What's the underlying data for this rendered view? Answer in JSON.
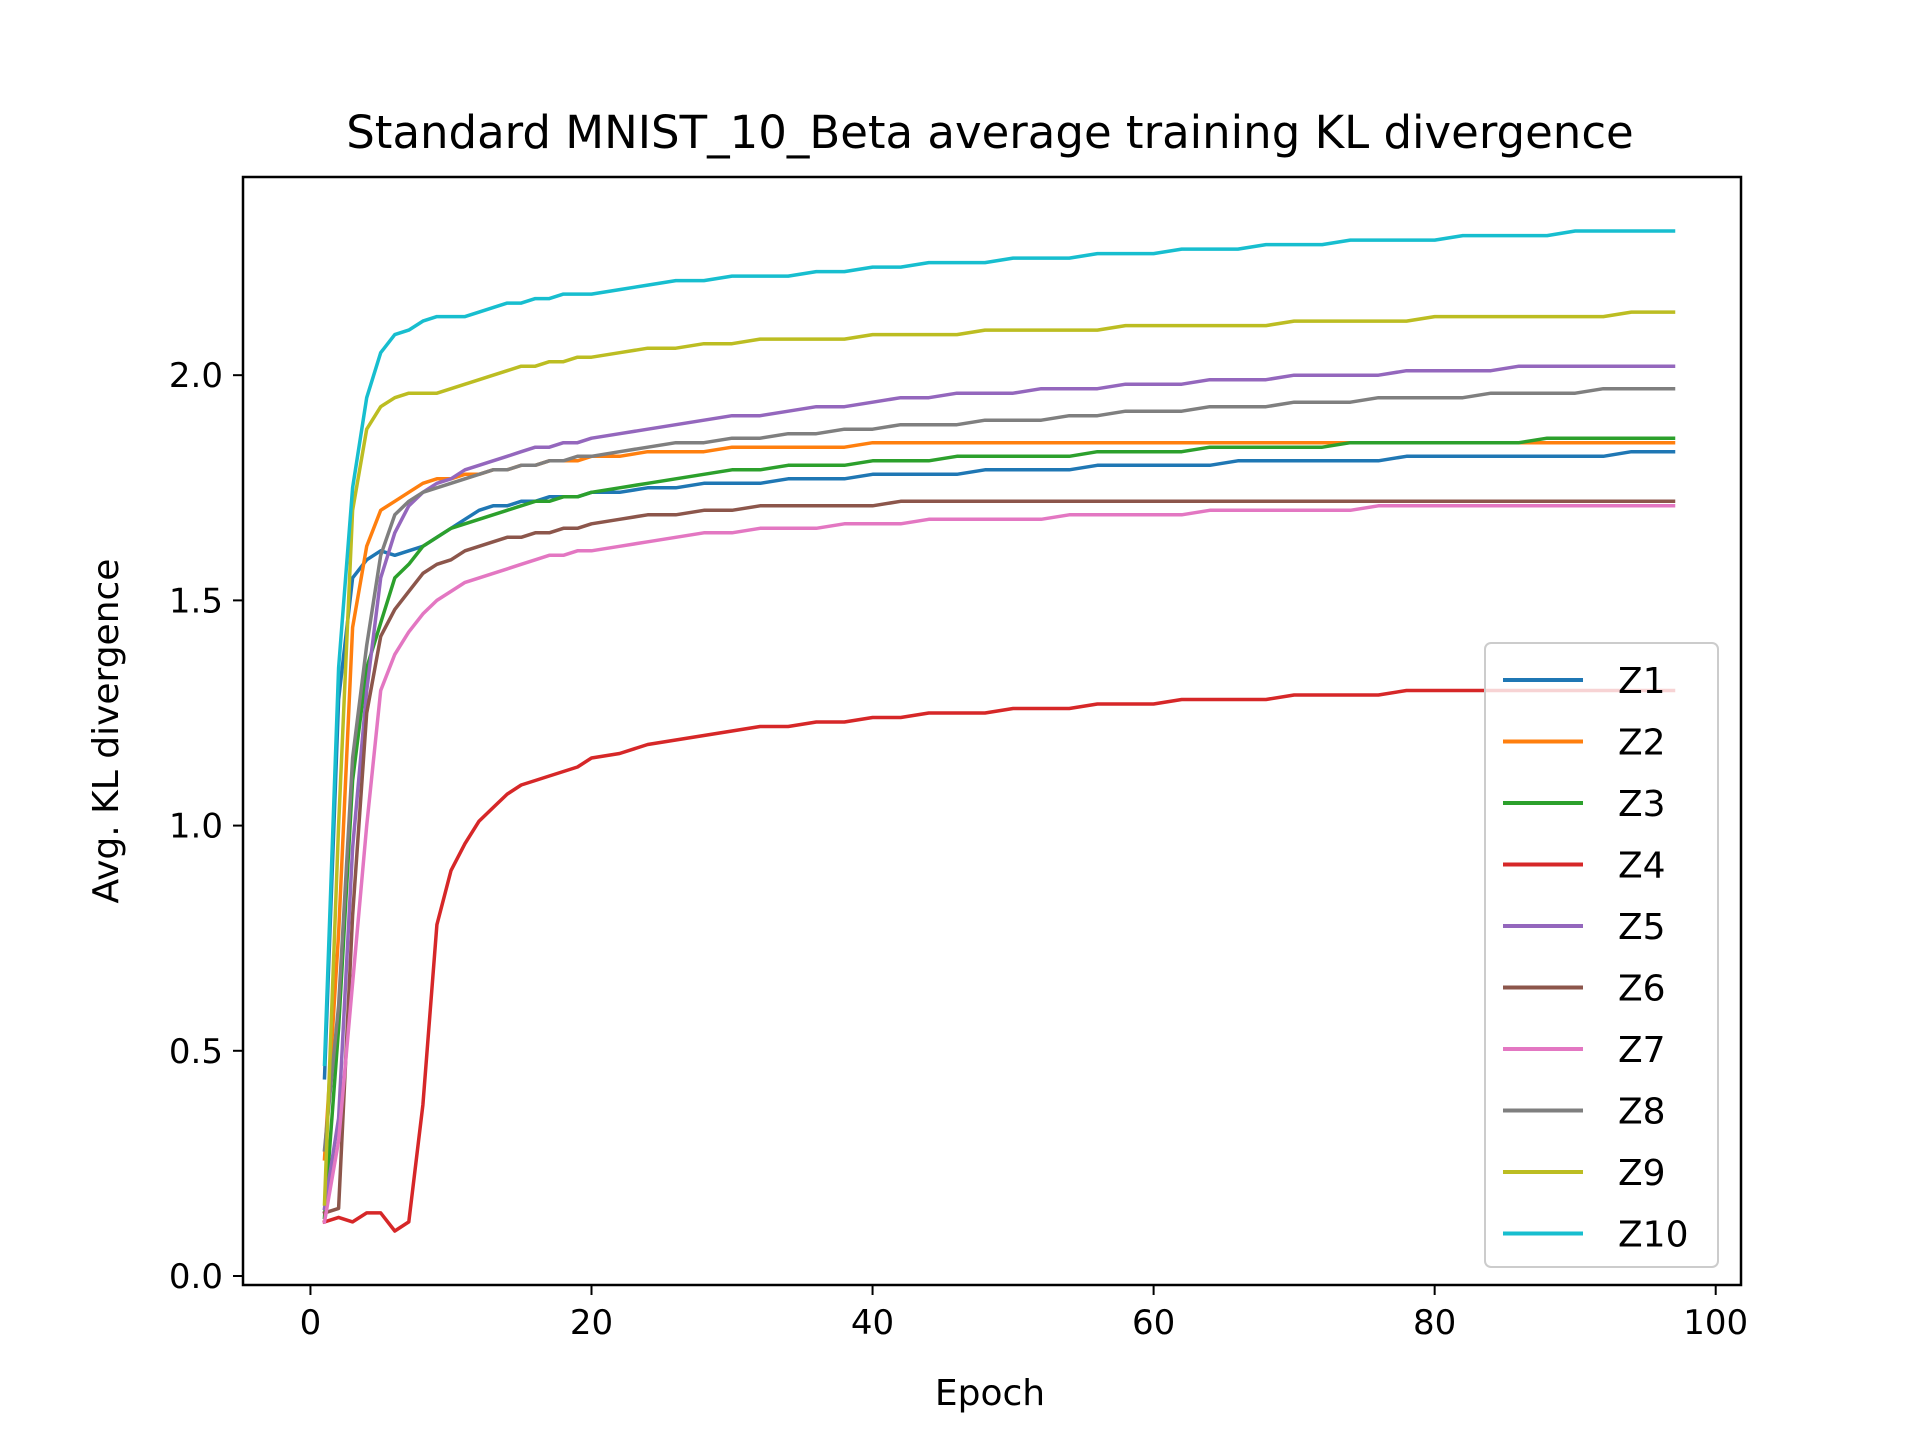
{
  "chart_data": {
    "type": "line",
    "title": "Standard MNIST_10_Beta average training KL divergence",
    "xlabel": "Epoch",
    "ylabel": "Avg. KL divergence",
    "xlim": [
      -4.8,
      101.8
    ],
    "ylim": [
      -0.02,
      2.44
    ],
    "xticks": [
      0,
      20,
      40,
      60,
      80,
      100
    ],
    "xtick_labels": [
      "0",
      "20",
      "40",
      "60",
      "80",
      "100"
    ],
    "yticks": [
      0.0,
      0.5,
      1.0,
      1.5,
      2.0
    ],
    "ytick_labels": [
      "0.0",
      "0.5",
      "1.0",
      "1.5",
      "2.0"
    ],
    "grid": false,
    "legend_position": "lower-right",
    "x": [
      1,
      2,
      3,
      4,
      5,
      6,
      7,
      8,
      9,
      10,
      11,
      12,
      13,
      14,
      15,
      16,
      17,
      18,
      19,
      20,
      22,
      24,
      26,
      28,
      30,
      32,
      34,
      36,
      38,
      40,
      42,
      44,
      46,
      48,
      50,
      52,
      54,
      56,
      58,
      60,
      62,
      64,
      66,
      68,
      70,
      72,
      74,
      76,
      78,
      80,
      82,
      84,
      86,
      88,
      90,
      92,
      94,
      96,
      97
    ],
    "series": [
      {
        "name": "Z1",
        "color": "#1f77b4",
        "values": [
          0.44,
          1.28,
          1.55,
          1.59,
          1.61,
          1.6,
          1.61,
          1.62,
          1.64,
          1.66,
          1.68,
          1.7,
          1.71,
          1.71,
          1.72,
          1.72,
          1.73,
          1.73,
          1.73,
          1.74,
          1.74,
          1.75,
          1.75,
          1.76,
          1.76,
          1.76,
          1.77,
          1.77,
          1.77,
          1.78,
          1.78,
          1.78,
          1.78,
          1.79,
          1.79,
          1.79,
          1.79,
          1.8,
          1.8,
          1.8,
          1.8,
          1.8,
          1.81,
          1.81,
          1.81,
          1.81,
          1.81,
          1.81,
          1.82,
          1.82,
          1.82,
          1.82,
          1.82,
          1.82,
          1.82,
          1.82,
          1.83,
          1.83,
          1.83
        ]
      },
      {
        "name": "Z2",
        "color": "#ff7f0e",
        "values": [
          0.26,
          0.76,
          1.44,
          1.62,
          1.7,
          1.72,
          1.74,
          1.76,
          1.77,
          1.77,
          1.78,
          1.78,
          1.79,
          1.79,
          1.8,
          1.8,
          1.81,
          1.81,
          1.81,
          1.82,
          1.82,
          1.83,
          1.83,
          1.83,
          1.84,
          1.84,
          1.84,
          1.84,
          1.84,
          1.85,
          1.85,
          1.85,
          1.85,
          1.85,
          1.85,
          1.85,
          1.85,
          1.85,
          1.85,
          1.85,
          1.85,
          1.85,
          1.85,
          1.85,
          1.85,
          1.85,
          1.85,
          1.85,
          1.85,
          1.85,
          1.85,
          1.85,
          1.85,
          1.85,
          1.85,
          1.85,
          1.85,
          1.85,
          1.85
        ]
      },
      {
        "name": "Z3",
        "color": "#2ca02c",
        "values": [
          0.13,
          0.55,
          1.1,
          1.35,
          1.45,
          1.55,
          1.58,
          1.62,
          1.64,
          1.66,
          1.67,
          1.68,
          1.69,
          1.7,
          1.71,
          1.72,
          1.72,
          1.73,
          1.73,
          1.74,
          1.75,
          1.76,
          1.77,
          1.78,
          1.79,
          1.79,
          1.8,
          1.8,
          1.8,
          1.81,
          1.81,
          1.81,
          1.82,
          1.82,
          1.82,
          1.82,
          1.82,
          1.83,
          1.83,
          1.83,
          1.83,
          1.84,
          1.84,
          1.84,
          1.84,
          1.84,
          1.85,
          1.85,
          1.85,
          1.85,
          1.85,
          1.85,
          1.85,
          1.86,
          1.86,
          1.86,
          1.86,
          1.86,
          1.86
        ]
      },
      {
        "name": "Z4",
        "color": "#d62728",
        "values": [
          0.12,
          0.13,
          0.12,
          0.14,
          0.14,
          0.1,
          0.12,
          0.38,
          0.78,
          0.9,
          0.96,
          1.01,
          1.04,
          1.07,
          1.09,
          1.1,
          1.11,
          1.12,
          1.13,
          1.15,
          1.16,
          1.18,
          1.19,
          1.2,
          1.21,
          1.22,
          1.22,
          1.23,
          1.23,
          1.24,
          1.24,
          1.25,
          1.25,
          1.25,
          1.26,
          1.26,
          1.26,
          1.27,
          1.27,
          1.27,
          1.28,
          1.28,
          1.28,
          1.28,
          1.29,
          1.29,
          1.29,
          1.29,
          1.3,
          1.3,
          1.3,
          1.3,
          1.3,
          1.3,
          1.3,
          1.3,
          1.3,
          1.3,
          1.3
        ]
      },
      {
        "name": "Z5",
        "color": "#9467bd",
        "values": [
          0.15,
          0.35,
          0.95,
          1.3,
          1.55,
          1.65,
          1.71,
          1.74,
          1.76,
          1.77,
          1.79,
          1.8,
          1.81,
          1.82,
          1.83,
          1.84,
          1.84,
          1.85,
          1.85,
          1.86,
          1.87,
          1.88,
          1.89,
          1.9,
          1.91,
          1.91,
          1.92,
          1.93,
          1.93,
          1.94,
          1.95,
          1.95,
          1.96,
          1.96,
          1.96,
          1.97,
          1.97,
          1.97,
          1.98,
          1.98,
          1.98,
          1.99,
          1.99,
          1.99,
          2.0,
          2.0,
          2.0,
          2.0,
          2.01,
          2.01,
          2.01,
          2.01,
          2.02,
          2.02,
          2.02,
          2.02,
          2.02,
          2.02,
          2.02
        ]
      },
      {
        "name": "Z6",
        "color": "#8c564b",
        "values": [
          0.14,
          0.15,
          0.8,
          1.25,
          1.42,
          1.48,
          1.52,
          1.56,
          1.58,
          1.59,
          1.61,
          1.62,
          1.63,
          1.64,
          1.64,
          1.65,
          1.65,
          1.66,
          1.66,
          1.67,
          1.68,
          1.69,
          1.69,
          1.7,
          1.7,
          1.71,
          1.71,
          1.71,
          1.71,
          1.71,
          1.72,
          1.72,
          1.72,
          1.72,
          1.72,
          1.72,
          1.72,
          1.72,
          1.72,
          1.72,
          1.72,
          1.72,
          1.72,
          1.72,
          1.72,
          1.72,
          1.72,
          1.72,
          1.72,
          1.72,
          1.72,
          1.72,
          1.72,
          1.72,
          1.72,
          1.72,
          1.72,
          1.72,
          1.72
        ]
      },
      {
        "name": "Z7",
        "color": "#e377c2",
        "values": [
          0.12,
          0.3,
          0.65,
          1.0,
          1.3,
          1.38,
          1.43,
          1.47,
          1.5,
          1.52,
          1.54,
          1.55,
          1.56,
          1.57,
          1.58,
          1.59,
          1.6,
          1.6,
          1.61,
          1.61,
          1.62,
          1.63,
          1.64,
          1.65,
          1.65,
          1.66,
          1.66,
          1.66,
          1.67,
          1.67,
          1.67,
          1.68,
          1.68,
          1.68,
          1.68,
          1.68,
          1.69,
          1.69,
          1.69,
          1.69,
          1.69,
          1.7,
          1.7,
          1.7,
          1.7,
          1.7,
          1.7,
          1.71,
          1.71,
          1.71,
          1.71,
          1.71,
          1.71,
          1.71,
          1.71,
          1.71,
          1.71,
          1.71,
          1.71
        ]
      },
      {
        "name": "Z8",
        "color": "#7f7f7f",
        "values": [
          0.28,
          0.6,
          1.15,
          1.4,
          1.6,
          1.69,
          1.72,
          1.74,
          1.75,
          1.76,
          1.77,
          1.78,
          1.79,
          1.79,
          1.8,
          1.8,
          1.81,
          1.81,
          1.82,
          1.82,
          1.83,
          1.84,
          1.85,
          1.85,
          1.86,
          1.86,
          1.87,
          1.87,
          1.88,
          1.88,
          1.89,
          1.89,
          1.89,
          1.9,
          1.9,
          1.9,
          1.91,
          1.91,
          1.92,
          1.92,
          1.92,
          1.93,
          1.93,
          1.93,
          1.94,
          1.94,
          1.94,
          1.95,
          1.95,
          1.95,
          1.95,
          1.96,
          1.96,
          1.96,
          1.96,
          1.97,
          1.97,
          1.97,
          1.97
        ]
      },
      {
        "name": "Z9",
        "color": "#bcbd22",
        "values": [
          0.16,
          1.0,
          1.7,
          1.88,
          1.93,
          1.95,
          1.96,
          1.96,
          1.96,
          1.97,
          1.98,
          1.99,
          2.0,
          2.01,
          2.02,
          2.02,
          2.03,
          2.03,
          2.04,
          2.04,
          2.05,
          2.06,
          2.06,
          2.07,
          2.07,
          2.08,
          2.08,
          2.08,
          2.08,
          2.09,
          2.09,
          2.09,
          2.09,
          2.1,
          2.1,
          2.1,
          2.1,
          2.1,
          2.11,
          2.11,
          2.11,
          2.11,
          2.11,
          2.11,
          2.12,
          2.12,
          2.12,
          2.12,
          2.12,
          2.13,
          2.13,
          2.13,
          2.13,
          2.13,
          2.13,
          2.13,
          2.14,
          2.14,
          2.14
        ]
      },
      {
        "name": "Z10",
        "color": "#17becf",
        "values": [
          0.47,
          1.35,
          1.75,
          1.95,
          2.05,
          2.09,
          2.1,
          2.12,
          2.13,
          2.13,
          2.13,
          2.14,
          2.15,
          2.16,
          2.16,
          2.17,
          2.17,
          2.18,
          2.18,
          2.18,
          2.19,
          2.2,
          2.21,
          2.21,
          2.22,
          2.22,
          2.22,
          2.23,
          2.23,
          2.24,
          2.24,
          2.25,
          2.25,
          2.25,
          2.26,
          2.26,
          2.26,
          2.27,
          2.27,
          2.27,
          2.28,
          2.28,
          2.28,
          2.29,
          2.29,
          2.29,
          2.3,
          2.3,
          2.3,
          2.3,
          2.31,
          2.31,
          2.31,
          2.31,
          2.32,
          2.32,
          2.32,
          2.32,
          2.32
        ]
      }
    ]
  }
}
